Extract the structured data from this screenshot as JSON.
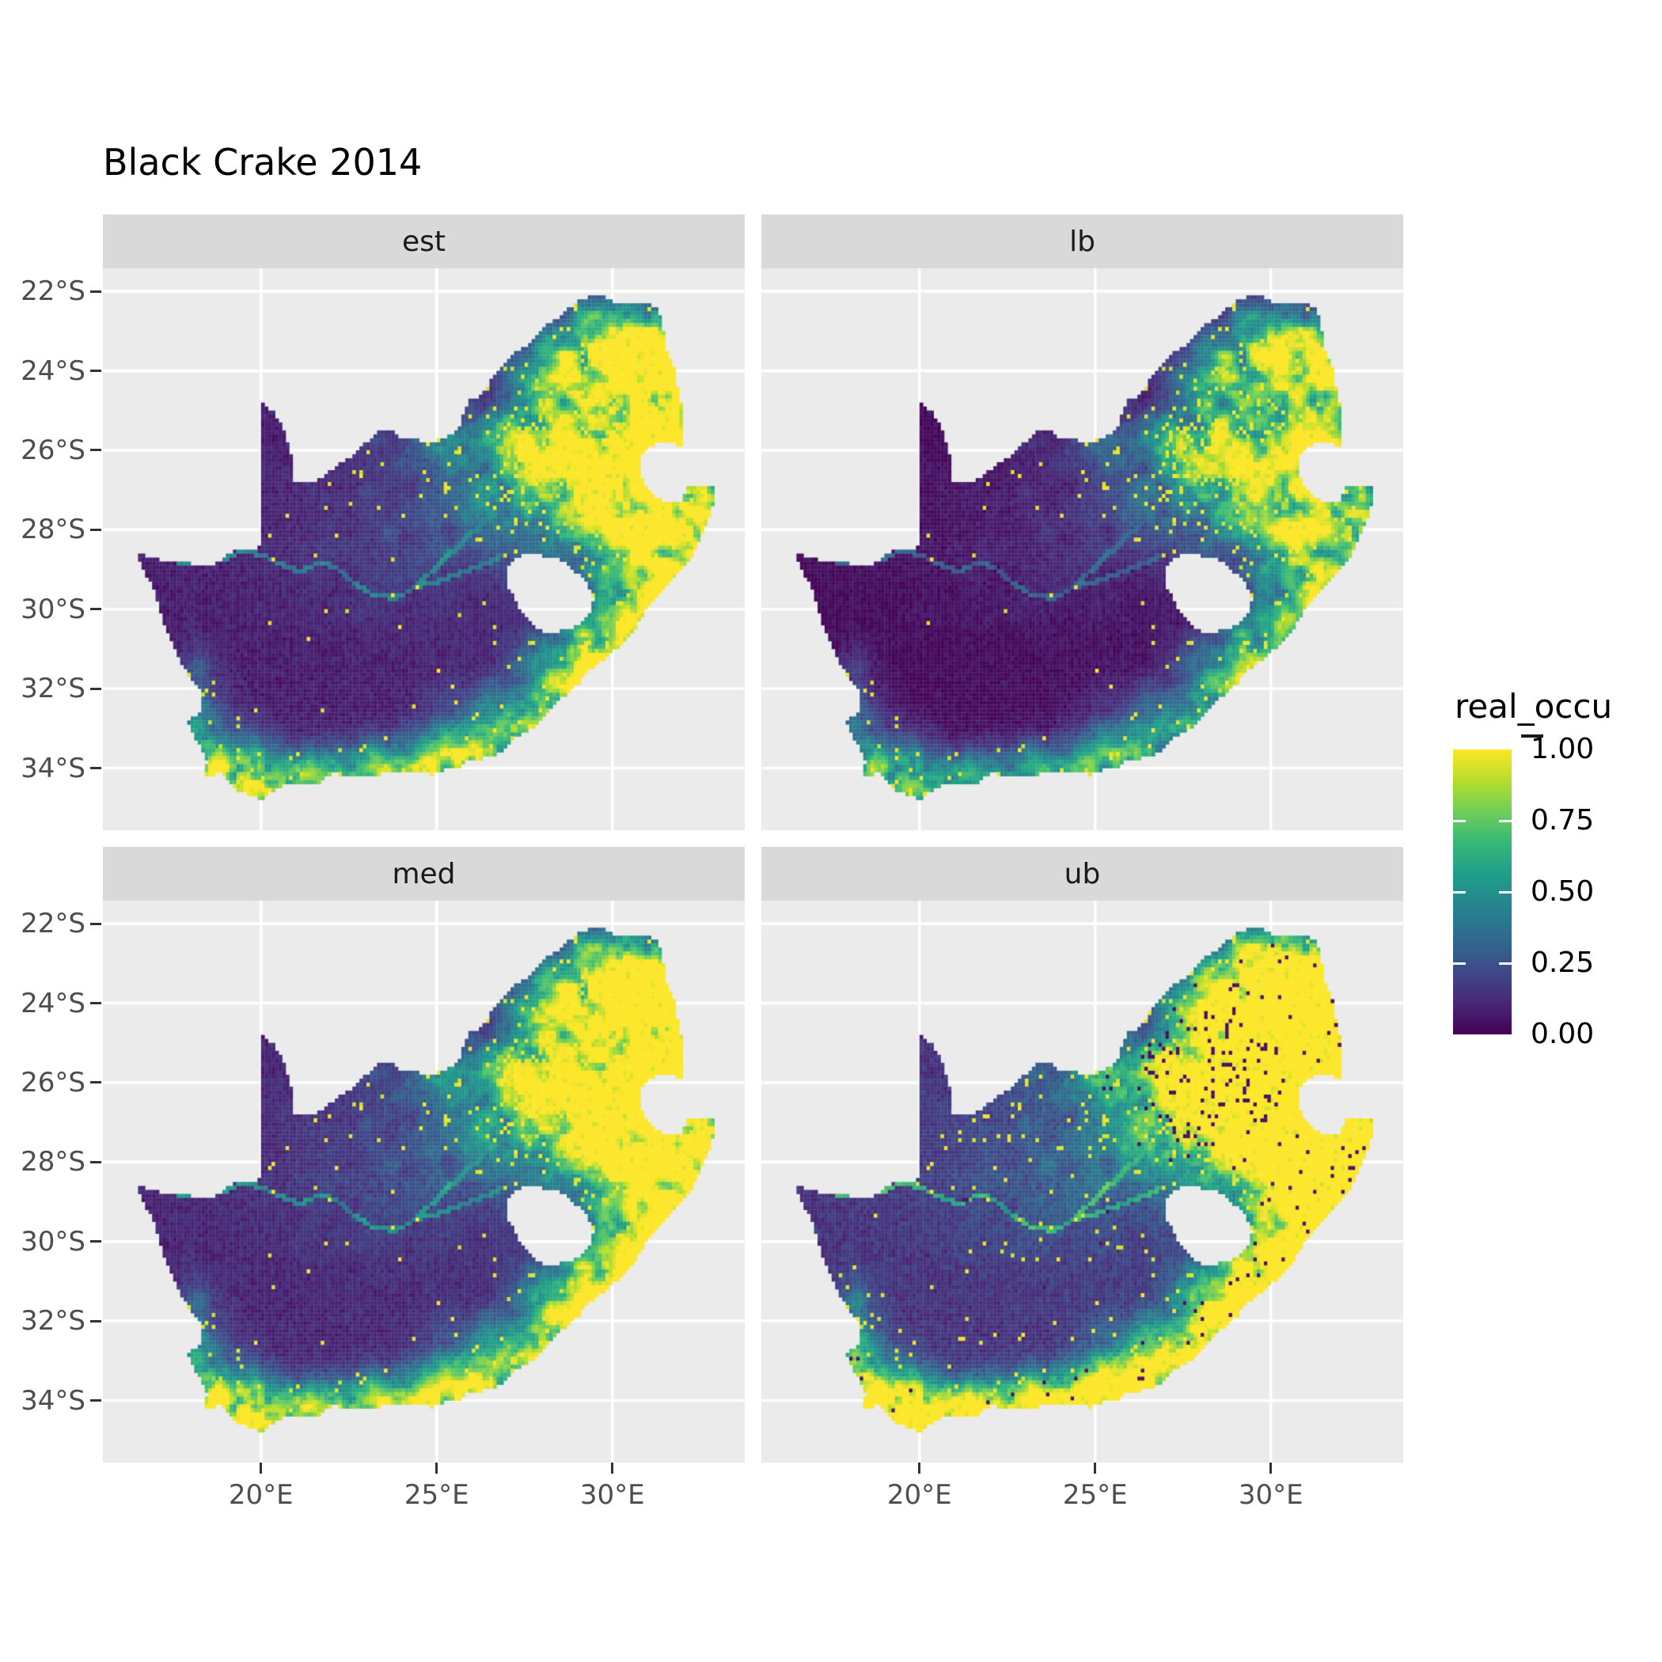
{
  "chart_data": {
    "type": "heatmap",
    "subtype": "faceted-raster-map",
    "title": "Black Crake 2014",
    "region_name": "South Africa",
    "facets": [
      {
        "label": "est",
        "transform": {
          "m": 1.0,
          "a": 0.0,
          "dotT": 0.997,
          "darkDots": false
        }
      },
      {
        "label": "lb",
        "transform": {
          "m": 0.8,
          "a": -0.035,
          "dotT": 0.999,
          "darkDots": false
        }
      },
      {
        "label": "med",
        "transform": {
          "m": 1.1,
          "a": 0.02,
          "dotT": 0.996,
          "darkDots": false
        }
      },
      {
        "label": "ub",
        "transform": {
          "m": 1.4,
          "a": 0.04,
          "dotT": 0.985,
          "darkDots": true
        }
      }
    ],
    "axes": {
      "x": {
        "ticks": [
          20,
          25,
          30
        ],
        "labels": [
          "20°E",
          "25°E",
          "30°E"
        ],
        "range": [
          15.5,
          33.77
        ]
      },
      "y": {
        "ticks": [
          22,
          24,
          26,
          28,
          30,
          32,
          34
        ],
        "labels": [
          "22°S",
          "24°S",
          "26°S",
          "28°S",
          "30°S",
          "32°S",
          "34°S"
        ],
        "range": [
          -21.42,
          -35.56
        ]
      }
    },
    "legend": {
      "title": "real_occu",
      "entries": [
        {
          "v": 1.0,
          "label": "1.00"
        },
        {
          "v": 0.75,
          "label": "0.75"
        },
        {
          "v": 0.5,
          "label": "0.50"
        },
        {
          "v": 0.25,
          "label": "0.25"
        },
        {
          "v": 0.0,
          "label": "0.00"
        }
      ],
      "bar_ticks": [
        0.25,
        0.5,
        0.75
      ]
    },
    "colormap": {
      "name": "viridis",
      "stops": [
        [
          0.0,
          "#440154"
        ],
        [
          0.1111,
          "#482878"
        ],
        [
          0.2222,
          "#3E4989"
        ],
        [
          0.3333,
          "#31688E"
        ],
        [
          0.4444,
          "#26828E"
        ],
        [
          0.5556,
          "#1F9E89"
        ],
        [
          0.6667,
          "#35B779"
        ],
        [
          0.7778,
          "#6ECE58"
        ],
        [
          0.8889,
          "#B5DE2B"
        ],
        [
          1.0,
          "#FDE725"
        ]
      ]
    },
    "colors": {
      "panel_bg": "#EBEBEB",
      "strip_bg": "#D9D9D9",
      "grid": "#FFFFFF",
      "axis_text": "#4D4D4D",
      "tick_mark": "#333333",
      "strip_text": "#1A1A1A",
      "title_text": "#000000",
      "legend_text": "#000000",
      "figure_bg": "#FFFFFF"
    },
    "raster": {
      "lon0": 16.4,
      "lon1": 33.0,
      "lat0": 22.0,
      "lat1": 35.0,
      "cell_deg": 0.1,
      "seed": 2014
    },
    "geo": {
      "outer": [
        [
          16.45,
          -28.58
        ],
        [
          17.05,
          -28.75
        ],
        [
          17.7,
          -28.77
        ],
        [
          18.2,
          -28.9
        ],
        [
          18.75,
          -28.84
        ],
        [
          19.25,
          -28.52
        ],
        [
          19.7,
          -28.5
        ],
        [
          19.99,
          -28.43
        ],
        [
          19.99,
          -27.6
        ],
        [
          19.99,
          -26.6
        ],
        [
          19.99,
          -25.6
        ],
        [
          19.99,
          -24.77
        ],
        [
          20.35,
          -25.05
        ],
        [
          20.62,
          -25.45
        ],
        [
          20.78,
          -25.85
        ],
        [
          20.88,
          -26.15
        ],
        [
          20.9,
          -26.45
        ],
        [
          20.86,
          -26.8
        ],
        [
          21.3,
          -26.85
        ],
        [
          21.8,
          -26.66
        ],
        [
          22.15,
          -26.4
        ],
        [
          22.6,
          -26.12
        ],
        [
          22.88,
          -25.9
        ],
        [
          23.3,
          -25.55
        ],
        [
          23.68,
          -25.45
        ],
        [
          24.0,
          -25.74
        ],
        [
          24.45,
          -25.74
        ],
        [
          24.78,
          -25.8
        ],
        [
          25.08,
          -25.72
        ],
        [
          25.38,
          -25.6
        ],
        [
          25.62,
          -25.46
        ],
        [
          25.9,
          -24.76
        ],
        [
          26.18,
          -24.64
        ],
        [
          26.5,
          -24.3
        ],
        [
          26.86,
          -23.85
        ],
        [
          27.16,
          -23.55
        ],
        [
          27.52,
          -23.39
        ],
        [
          27.86,
          -23.05
        ],
        [
          28.2,
          -22.8
        ],
        [
          28.6,
          -22.56
        ],
        [
          29.05,
          -22.22
        ],
        [
          29.38,
          -22.13
        ],
        [
          29.78,
          -22.14
        ],
        [
          30.1,
          -22.28
        ],
        [
          30.52,
          -22.3
        ],
        [
          30.88,
          -22.3
        ],
        [
          31.3,
          -22.4
        ],
        [
          31.45,
          -22.95
        ],
        [
          31.56,
          -23.5
        ],
        [
          31.76,
          -23.92
        ],
        [
          31.86,
          -24.4
        ],
        [
          31.96,
          -24.82
        ],
        [
          32.02,
          -25.35
        ],
        [
          32.02,
          -25.9
        ],
        [
          31.4,
          -25.74
        ],
        [
          31.1,
          -25.9
        ],
        [
          30.82,
          -26.12
        ],
        [
          30.8,
          -26.45
        ],
        [
          30.88,
          -26.78
        ],
        [
          31.12,
          -27.1
        ],
        [
          31.5,
          -27.3
        ],
        [
          31.96,
          -27.32
        ],
        [
          32.12,
          -26.86
        ],
        [
          32.88,
          -26.85
        ],
        [
          32.9,
          -27.3
        ],
        [
          32.66,
          -27.9
        ],
        [
          32.45,
          -28.3
        ],
        [
          32.24,
          -28.7
        ],
        [
          32.0,
          -28.96
        ],
        [
          31.74,
          -29.26
        ],
        [
          31.3,
          -29.66
        ],
        [
          31.04,
          -29.9
        ],
        [
          30.68,
          -30.42
        ],
        [
          30.28,
          -30.88
        ],
        [
          29.88,
          -31.16
        ],
        [
          29.38,
          -31.52
        ],
        [
          28.88,
          -32.02
        ],
        [
          28.28,
          -32.42
        ],
        [
          27.78,
          -32.96
        ],
        [
          27.28,
          -33.22
        ],
        [
          26.78,
          -33.62
        ],
        [
          26.28,
          -33.76
        ],
        [
          25.88,
          -33.76
        ],
        [
          25.64,
          -34.02
        ],
        [
          25.28,
          -34.0
        ],
        [
          24.88,
          -34.16
        ],
        [
          24.18,
          -34.1
        ],
        [
          23.58,
          -34.1
        ],
        [
          23.08,
          -34.22
        ],
        [
          22.48,
          -34.2
        ],
        [
          22.08,
          -34.12
        ],
        [
          21.58,
          -34.4
        ],
        [
          20.98,
          -34.42
        ],
        [
          20.48,
          -34.46
        ],
        [
          20.0,
          -34.82
        ],
        [
          19.58,
          -34.62
        ],
        [
          19.28,
          -34.56
        ],
        [
          19.08,
          -34.36
        ],
        [
          18.8,
          -34.1
        ],
        [
          18.46,
          -34.22
        ],
        [
          18.34,
          -34.08
        ],
        [
          18.46,
          -33.86
        ],
        [
          18.3,
          -33.5
        ],
        [
          18.1,
          -33.2
        ],
        [
          17.86,
          -32.8
        ],
        [
          18.26,
          -32.64
        ],
        [
          18.3,
          -32.1
        ],
        [
          17.9,
          -31.6
        ],
        [
          17.54,
          -31.0
        ],
        [
          17.24,
          -30.35
        ],
        [
          16.94,
          -29.5
        ],
        [
          16.64,
          -29.0
        ]
      ],
      "hole_lesotho": [
        [
          27.0,
          -28.92
        ],
        [
          27.38,
          -28.66
        ],
        [
          27.78,
          -28.6
        ],
        [
          28.2,
          -28.7
        ],
        [
          28.62,
          -28.76
        ],
        [
          28.96,
          -29.06
        ],
        [
          29.26,
          -29.36
        ],
        [
          29.46,
          -29.76
        ],
        [
          29.34,
          -30.1
        ],
        [
          29.08,
          -30.36
        ],
        [
          28.68,
          -30.52
        ],
        [
          28.24,
          -30.62
        ],
        [
          27.9,
          -30.5
        ],
        [
          27.6,
          -30.26
        ],
        [
          27.34,
          -29.96
        ],
        [
          27.1,
          -29.56
        ],
        [
          26.94,
          -29.22
        ]
      ],
      "rivers": [
        [
          [
            17.1,
            -28.72
          ],
          [
            18.0,
            -28.86
          ],
          [
            18.9,
            -28.76
          ],
          [
            19.5,
            -28.52
          ],
          [
            20.1,
            -28.66
          ],
          [
            20.6,
            -28.9
          ],
          [
            21.1,
            -29.06
          ],
          [
            21.6,
            -28.86
          ],
          [
            22.1,
            -28.92
          ],
          [
            22.6,
            -29.3
          ],
          [
            23.2,
            -29.66
          ],
          [
            23.8,
            -29.72
          ],
          [
            24.4,
            -29.46
          ],
          [
            25.0,
            -29.3
          ],
          [
            25.6,
            -29.12
          ],
          [
            26.2,
            -28.92
          ],
          [
            26.8,
            -28.68
          ]
        ],
        [
          [
            24.4,
            -29.46
          ],
          [
            24.9,
            -29.0
          ],
          [
            25.5,
            -28.5
          ],
          [
            26.1,
            -28.0
          ],
          [
            26.7,
            -27.5
          ],
          [
            27.3,
            -27.05
          ],
          [
            27.9,
            -26.82
          ],
          [
            28.5,
            -26.8
          ],
          [
            29.0,
            -26.75
          ]
        ],
        [
          [
            27.6,
            -25.7
          ],
          [
            28.1,
            -25.1
          ],
          [
            28.5,
            -24.55
          ],
          [
            29.0,
            -24.0
          ],
          [
            29.5,
            -23.6
          ]
        ]
      ]
    },
    "pattern": {
      "hotspots": [
        [
          30.2,
          -23.5,
          1.6,
          0.9,
          0.9
        ],
        [
          29.0,
          -24.4,
          1.0,
          0.7,
          0.55
        ],
        [
          31.3,
          -24.9,
          0.75,
          1.1,
          0.95
        ],
        [
          28.2,
          -25.9,
          1.1,
          0.9,
          0.7
        ],
        [
          30.1,
          -26.4,
          1.0,
          0.8,
          0.6
        ],
        [
          29.3,
          -27.4,
          1.2,
          1.0,
          0.45
        ],
        [
          27.0,
          -27.2,
          1.4,
          1.0,
          0.3
        ],
        [
          30.9,
          -28.4,
          0.8,
          1.2,
          0.8
        ],
        [
          31.9,
          -29.2,
          0.8,
          1.3,
          1.0
        ],
        [
          32.5,
          -27.6,
          0.6,
          1.0,
          1.0
        ],
        [
          31.5,
          -26.5,
          1.5,
          2.5,
          0.35
        ],
        [
          29.9,
          -31.2,
          1.0,
          0.9,
          0.75
        ],
        [
          28.8,
          -31.6,
          0.9,
          0.7,
          0.5
        ],
        [
          27.5,
          -32.9,
          1.4,
          0.7,
          0.65
        ],
        [
          25.8,
          -33.9,
          1.0,
          0.55,
          0.65
        ],
        [
          23.8,
          -34.05,
          1.6,
          0.5,
          0.7
        ],
        [
          20.9,
          -34.35,
          1.4,
          0.5,
          0.65
        ],
        [
          18.95,
          -33.95,
          0.85,
          0.6,
          0.85
        ],
        [
          18.2,
          -32.5,
          0.45,
          0.9,
          0.35
        ],
        [
          25.5,
          -25.7,
          1.3,
          0.5,
          0.3
        ],
        [
          24.0,
          -28.2,
          2.5,
          1.6,
          0.12
        ]
      ],
      "dot_cluster": [
        28.2,
        -25.9,
        1.4,
        1.1
      ],
      "river_level": [
        0.3,
        0.25
      ],
      "base_mix": [
        0.3,
        1.15
      ],
      "floor": [
        0.035,
        0.07
      ]
    }
  }
}
